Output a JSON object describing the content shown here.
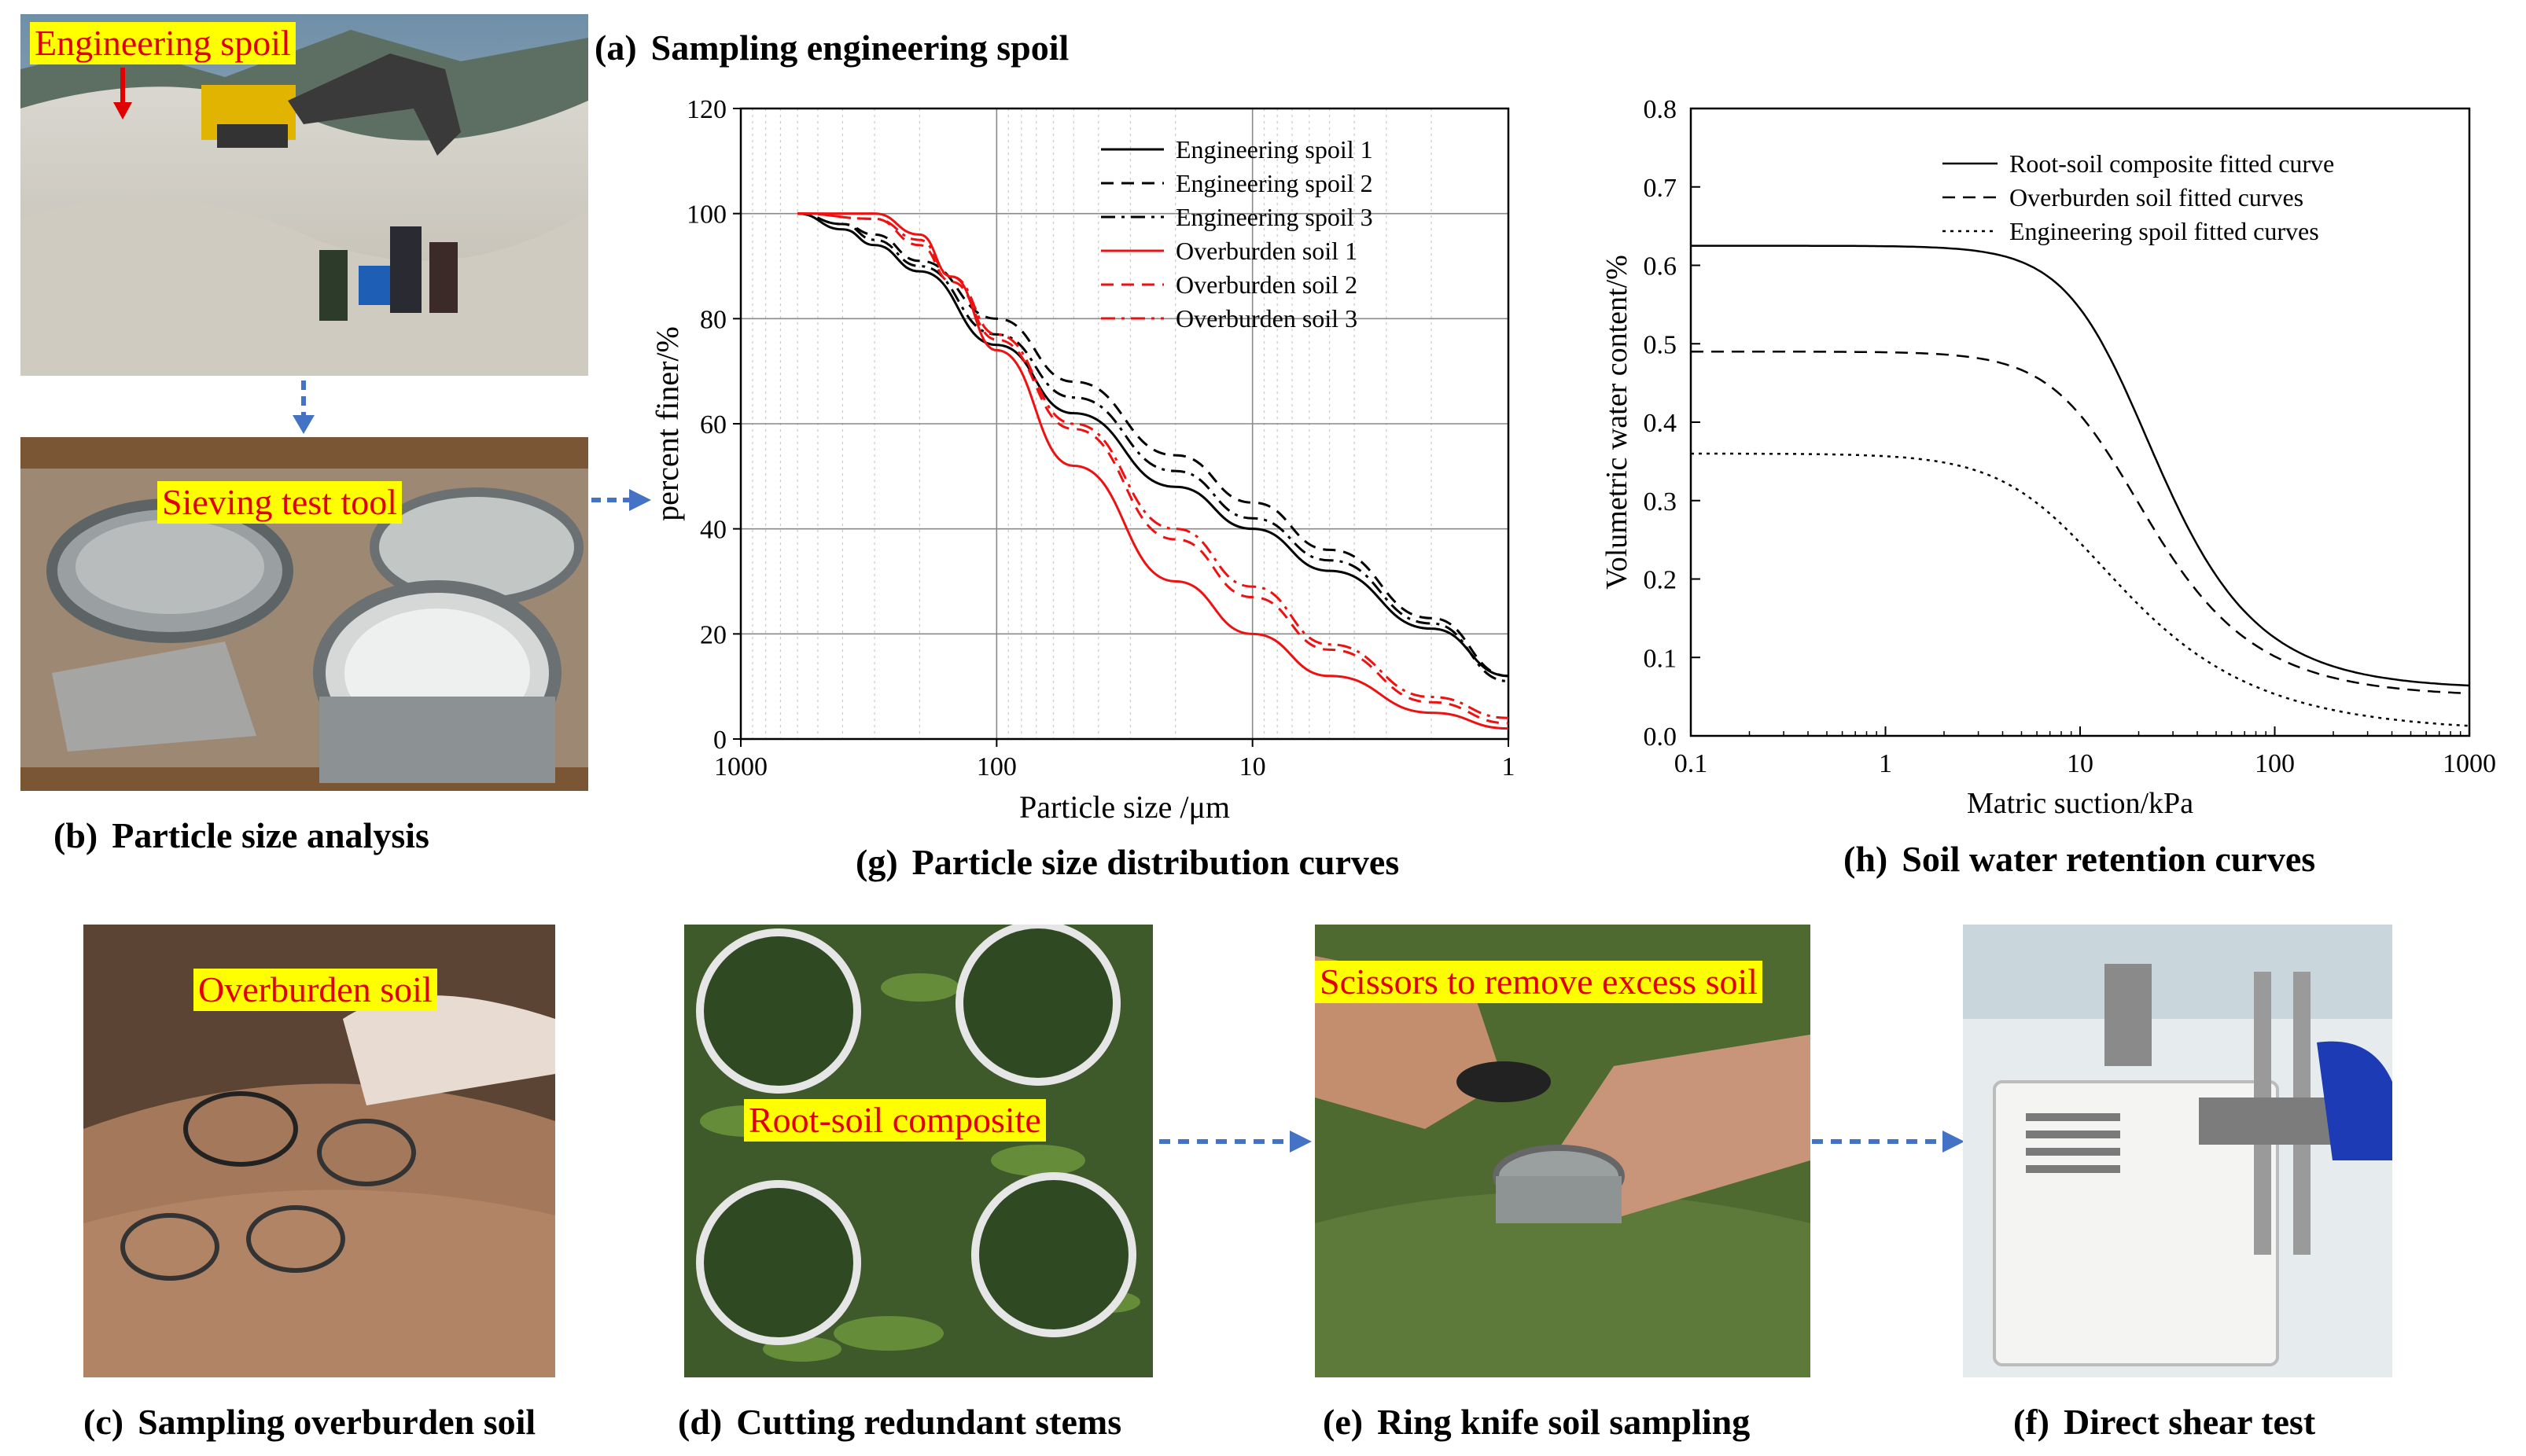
{
  "photos": {
    "a": {
      "tag": "Engineering spoil",
      "caption_letter": "(a)",
      "caption": "Sampling engineering spoil"
    },
    "b": {
      "tag": "Sieving test tool",
      "caption_letter": "(b)",
      "caption": "Particle size analysis"
    },
    "c": {
      "tag": "Overburden soil",
      "caption_letter": "(c)",
      "caption": "Sampling overburden soil"
    },
    "d": {
      "tag": "Root-soil composite",
      "caption_letter": "(d)",
      "caption": "Cutting redundant stems"
    },
    "e": {
      "tag": "Scissors to remove excess soil",
      "caption_letter": "(e)",
      "caption": "Ring knife soil sampling"
    },
    "f": {
      "caption_letter": "(f)",
      "caption": "Direct shear test"
    }
  },
  "chart_data": [
    {
      "id": "g",
      "type": "line",
      "caption_letter": "(g)",
      "caption": "Particle size distribution curves",
      "xlabel": "Particle size /μm",
      "ylabel": "percent finer/%",
      "x_scale": "log-reversed",
      "xlim": [
        1000,
        1
      ],
      "ylim": [
        0,
        120
      ],
      "x_ticks": [
        "1000",
        "100",
        "10",
        "1"
      ],
      "y_ticks": [
        "0",
        "20",
        "40",
        "60",
        "80",
        "100",
        "120"
      ],
      "grid": true,
      "legend_position": "top-right",
      "series": [
        {
          "name": "Engineering spoil 1",
          "color": "#000000",
          "dash": "solid",
          "x": [
            600,
            400,
            300,
            200,
            100,
            50,
            20,
            10,
            5,
            2,
            1
          ],
          "y": [
            100,
            97,
            94,
            89,
            75,
            62,
            48,
            40,
            32,
            21,
            12
          ]
        },
        {
          "name": "Engineering spoil 2",
          "color": "#000000",
          "dash": "dashed",
          "x": [
            600,
            400,
            300,
            200,
            100,
            50,
            20,
            10,
            5,
            2,
            1
          ],
          "y": [
            100,
            98,
            96,
            91,
            80,
            68,
            54,
            45,
            36,
            23,
            12
          ]
        },
        {
          "name": "Engineering spoil 3",
          "color": "#000000",
          "dash": "dashdot",
          "x": [
            600,
            400,
            300,
            200,
            100,
            50,
            20,
            10,
            5,
            2,
            1
          ],
          "y": [
            100,
            98,
            95,
            90,
            77,
            65,
            51,
            42,
            34,
            22,
            11
          ]
        },
        {
          "name": "Overburden soil 1",
          "color": "#ee1111",
          "dash": "solid",
          "x": [
            600,
            300,
            200,
            150,
            100,
            50,
            20,
            10,
            5,
            2,
            1
          ],
          "y": [
            100,
            100,
            96,
            88,
            74,
            52,
            30,
            20,
            12,
            5,
            2
          ]
        },
        {
          "name": "Overburden soil 2",
          "color": "#ee1111",
          "dash": "dashed",
          "x": [
            600,
            300,
            200,
            150,
            100,
            50,
            20,
            10,
            5,
            2,
            1
          ],
          "y": [
            100,
            99,
            94,
            87,
            76,
            59,
            38,
            27,
            17,
            7,
            3
          ]
        },
        {
          "name": "Overburden soil 3",
          "color": "#ee1111",
          "dash": "dashdot",
          "x": [
            600,
            300,
            200,
            150,
            100,
            50,
            20,
            10,
            5,
            2,
            1
          ],
          "y": [
            100,
            99,
            95,
            88,
            77,
            60,
            40,
            29,
            18,
            8,
            4
          ]
        }
      ]
    },
    {
      "id": "h",
      "type": "line",
      "caption_letter": "(h)",
      "caption": "Soil water retention curves",
      "xlabel": "Matric suction/kPa",
      "ylabel": "Volumetric water content/%",
      "x_scale": "log",
      "xlim": [
        0.1,
        1000
      ],
      "ylim": [
        0,
        0.8
      ],
      "x_ticks": [
        "0.1",
        "1",
        "10",
        "100",
        "1000"
      ],
      "y_ticks": [
        "0.0",
        "0.1",
        "0.2",
        "0.3",
        "0.4",
        "0.5",
        "0.6",
        "0.7",
        "0.8"
      ],
      "grid": false,
      "legend_position": "top-right",
      "series": [
        {
          "name": "Root-soil composite fitted curve",
          "color": "#000000",
          "dash": "solid",
          "theta_s": 0.625,
          "theta_r": 0.06,
          "alpha": 0.06,
          "n": 2.2
        },
        {
          "name": "Overburden soil fitted curves",
          "color": "#000000",
          "dash": "dashed",
          "theta_s": 0.49,
          "theta_r": 0.05,
          "alpha": 0.07,
          "n": 2.1
        },
        {
          "name": "Engineering spoil fitted curves",
          "color": "#000000",
          "dash": "dotted",
          "theta_s": 0.36,
          "theta_r": 0.005,
          "alpha": 0.12,
          "n": 1.8
        }
      ]
    }
  ]
}
